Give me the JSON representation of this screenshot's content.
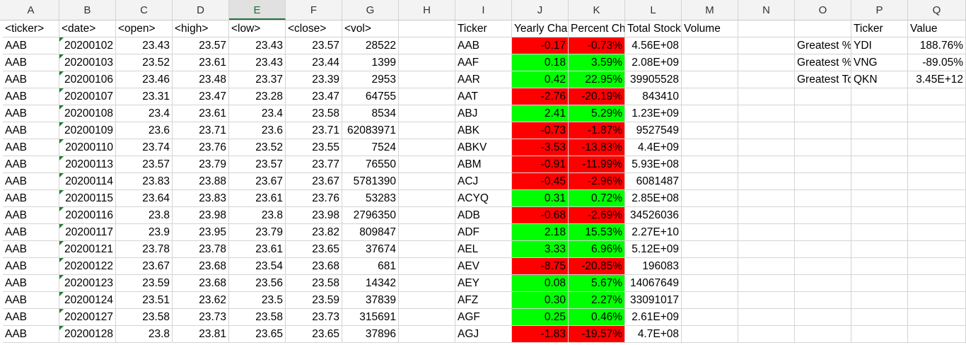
{
  "columns": [
    "A",
    "B",
    "C",
    "D",
    "E",
    "F",
    "G",
    "H",
    "I",
    "J",
    "K",
    "L",
    "M",
    "N",
    "O",
    "P",
    "Q"
  ],
  "selected_column": "E",
  "headers": {
    "A": "<ticker>",
    "B": "<date>",
    "C": "<open>",
    "D": "<high>",
    "E": "<low>",
    "F": "<close>",
    "G": "<vol>",
    "I": "Ticker",
    "J": "Yearly Change",
    "K": "Percent Change",
    "L": "Total Stock Volume",
    "P": "Ticker",
    "Q": "Value"
  },
  "raw_rows": [
    [
      "AAB",
      "20200102",
      "23.43",
      "23.57",
      "23.43",
      "23.57",
      "28522"
    ],
    [
      "AAB",
      "20200103",
      "23.52",
      "23.61",
      "23.43",
      "23.44",
      "1399"
    ],
    [
      "AAB",
      "20200106",
      "23.46",
      "23.48",
      "23.37",
      "23.39",
      "2953"
    ],
    [
      "AAB",
      "20200107",
      "23.31",
      "23.47",
      "23.28",
      "23.47",
      "64755"
    ],
    [
      "AAB",
      "20200108",
      "23.4",
      "23.61",
      "23.4",
      "23.58",
      "8534"
    ],
    [
      "AAB",
      "20200109",
      "23.6",
      "23.71",
      "23.6",
      "23.71",
      "62083971"
    ],
    [
      "AAB",
      "20200110",
      "23.74",
      "23.76",
      "23.52",
      "23.55",
      "7524"
    ],
    [
      "AAB",
      "20200113",
      "23.57",
      "23.79",
      "23.57",
      "23.77",
      "76550"
    ],
    [
      "AAB",
      "20200114",
      "23.83",
      "23.88",
      "23.67",
      "23.67",
      "5781390"
    ],
    [
      "AAB",
      "20200115",
      "23.64",
      "23.83",
      "23.61",
      "23.76",
      "53283"
    ],
    [
      "AAB",
      "20200116",
      "23.8",
      "23.98",
      "23.8",
      "23.98",
      "2796350"
    ],
    [
      "AAB",
      "20200117",
      "23.9",
      "23.95",
      "23.79",
      "23.82",
      "809847"
    ],
    [
      "AAB",
      "20200121",
      "23.78",
      "23.78",
      "23.61",
      "23.65",
      "37674"
    ],
    [
      "AAB",
      "20200122",
      "23.67",
      "23.68",
      "23.54",
      "23.68",
      "681"
    ],
    [
      "AAB",
      "20200123",
      "23.59",
      "23.68",
      "23.56",
      "23.58",
      "14342"
    ],
    [
      "AAB",
      "20200124",
      "23.51",
      "23.62",
      "23.5",
      "23.59",
      "37839"
    ],
    [
      "AAB",
      "20200127",
      "23.58",
      "23.73",
      "23.58",
      "23.73",
      "315691"
    ],
    [
      "AAB",
      "20200128",
      "23.8",
      "23.81",
      "23.65",
      "23.65",
      "37896"
    ]
  ],
  "summary_rows": [
    {
      "ticker": "AAB",
      "change": "-0.17",
      "pct": "-0.73%",
      "vol": "4.56E+08",
      "status": "red"
    },
    {
      "ticker": "AAF",
      "change": "0.18",
      "pct": "3.59%",
      "vol": "2.08E+09",
      "status": "green"
    },
    {
      "ticker": "AAR",
      "change": "0.42",
      "pct": "22.95%",
      "vol": "39905528",
      "status": "green"
    },
    {
      "ticker": "AAT",
      "change": "-2.76",
      "pct": "-20.19%",
      "vol": "843410",
      "status": "red"
    },
    {
      "ticker": "ABJ",
      "change": "2.41",
      "pct": "5.29%",
      "vol": "1.23E+09",
      "status": "green"
    },
    {
      "ticker": "ABK",
      "change": "-0.73",
      "pct": "-1.87%",
      "vol": "9527549",
      "status": "red"
    },
    {
      "ticker": "ABKV",
      "change": "-3.53",
      "pct": "-13.83%",
      "vol": "4.4E+09",
      "status": "red"
    },
    {
      "ticker": "ABM",
      "change": "-0.91",
      "pct": "-11.99%",
      "vol": "5.93E+08",
      "status": "red"
    },
    {
      "ticker": "ACJ",
      "change": "-0.45",
      "pct": "-2.96%",
      "vol": "6081487",
      "status": "red"
    },
    {
      "ticker": "ACYQ",
      "change": "0.31",
      "pct": "0.72%",
      "vol": "2.85E+08",
      "status": "green"
    },
    {
      "ticker": "ADB",
      "change": "-0.68",
      "pct": "-2.69%",
      "vol": "34526036",
      "status": "red"
    },
    {
      "ticker": "ADF",
      "change": "2.18",
      "pct": "15.53%",
      "vol": "2.27E+10",
      "status": "green"
    },
    {
      "ticker": "AEL",
      "change": "3.33",
      "pct": "6.96%",
      "vol": "5.12E+09",
      "status": "green"
    },
    {
      "ticker": "AEV",
      "change": "-8.75",
      "pct": "-20.85%",
      "vol": "196083",
      "status": "red"
    },
    {
      "ticker": "AEY",
      "change": "0.08",
      "pct": "5.67%",
      "vol": "14067649",
      "status": "green"
    },
    {
      "ticker": "AFZ",
      "change": "0.30",
      "pct": "2.27%",
      "vol": "33091017",
      "status": "green"
    },
    {
      "ticker": "AGF",
      "change": "0.25",
      "pct": "0.46%",
      "vol": "2.61E+09",
      "status": "green"
    },
    {
      "ticker": "AGJ",
      "change": "-1.83",
      "pct": "-19.57%",
      "vol": "4.7E+08",
      "status": "red"
    }
  ],
  "greatest": [
    {
      "label": "Greatest % Increase",
      "ticker": "YDI",
      "value": "188.76%"
    },
    {
      "label": "Greatest % Decrease",
      "ticker": "VNG",
      "value": "-89.05%"
    },
    {
      "label": "Greatest Total Volume",
      "ticker": "QKN",
      "value": "3.45E+12"
    }
  ],
  "colors": {
    "negative": "#ff0000",
    "positive": "#00ff00",
    "grid": "#d4d4d4",
    "header_bg": "#f3f3f3"
  }
}
